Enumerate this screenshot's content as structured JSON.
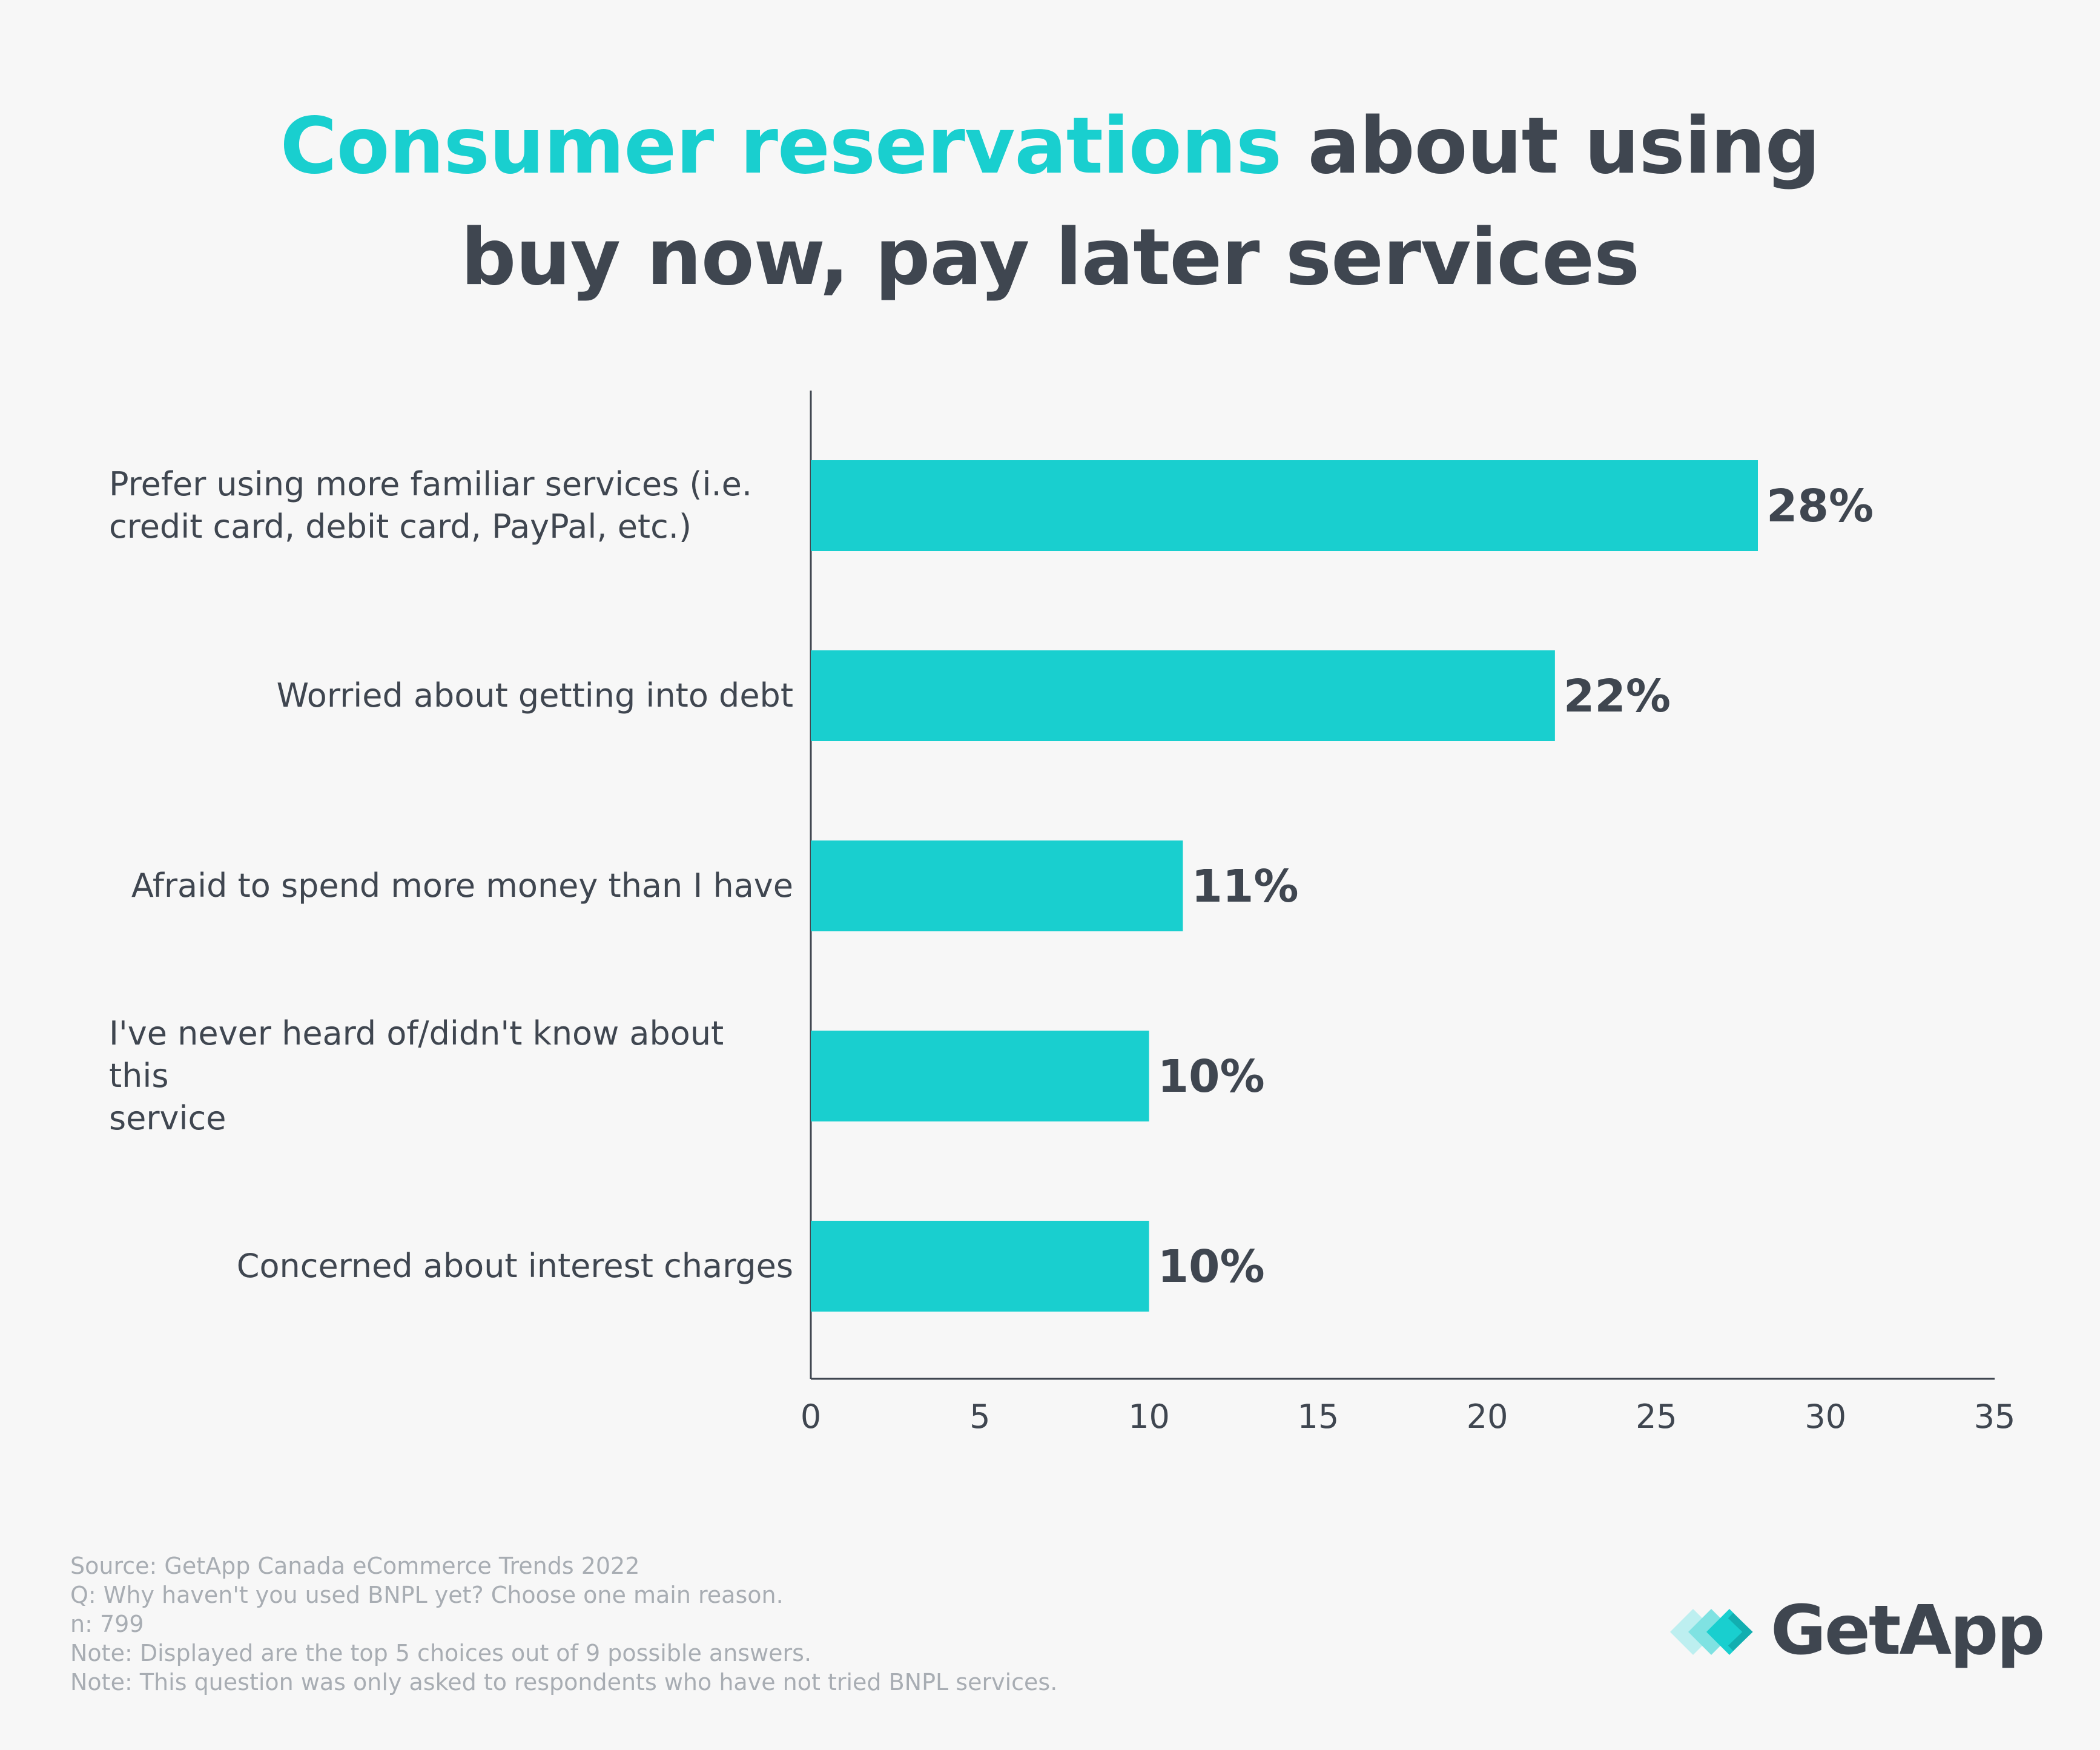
{
  "title": {
    "highlight": "Consumer reservations",
    "rest_line1": " about using",
    "line2": "buy now, pay later services"
  },
  "colors": {
    "bar": "#19cfcf",
    "title_accent": "#19cfcf",
    "text": "#3f4650",
    "footnote": "#a8adb3"
  },
  "chart_data": {
    "type": "bar",
    "orientation": "horizontal",
    "title": "Consumer reservations about using buy now, pay later services",
    "categories": [
      "Prefer using more familiar services (i.e. credit card, debit card, PayPal, etc.)",
      "Worried about getting into debt",
      "Afraid to spend more money than I have",
      "I've never heard of/didn't know about this service",
      "Concerned about interest charges"
    ],
    "category_lines": [
      [
        "Prefer using more familiar services (i.e.",
        "credit card, debit card, PayPal, etc.)"
      ],
      [
        "Worried about getting into debt"
      ],
      [
        "Afraid to spend more money than I have"
      ],
      [
        "I've never heard of/didn't know about this",
        "service"
      ],
      [
        "Concerned about interest charges"
      ]
    ],
    "category_align": [
      "left",
      "right",
      "right",
      "left",
      "right"
    ],
    "values": [
      28,
      22,
      11,
      10,
      10
    ],
    "data_labels": [
      "28%",
      "22%",
      "11%",
      "10%",
      "10%"
    ],
    "xlim": [
      0,
      35
    ],
    "xticks": [
      0,
      5,
      10,
      15,
      20,
      25,
      30,
      35
    ],
    "xtick_labels": [
      "0",
      "5",
      "10",
      "15",
      "20",
      "25",
      "30",
      "35"
    ],
    "xlabel": "",
    "ylabel": "",
    "grid": false
  },
  "footnotes": [
    "Source: GetApp Canada eCommerce Trends 2022",
    "Q: Why haven't you used BNPL yet? Choose one main reason.",
    "n: 799",
    "Note: Displayed are the top 5 choices out of 9 possible answers.",
    "Note: This question was only asked to respondents who have not tried BNPL services."
  ],
  "logo": {
    "text": "GetApp"
  }
}
